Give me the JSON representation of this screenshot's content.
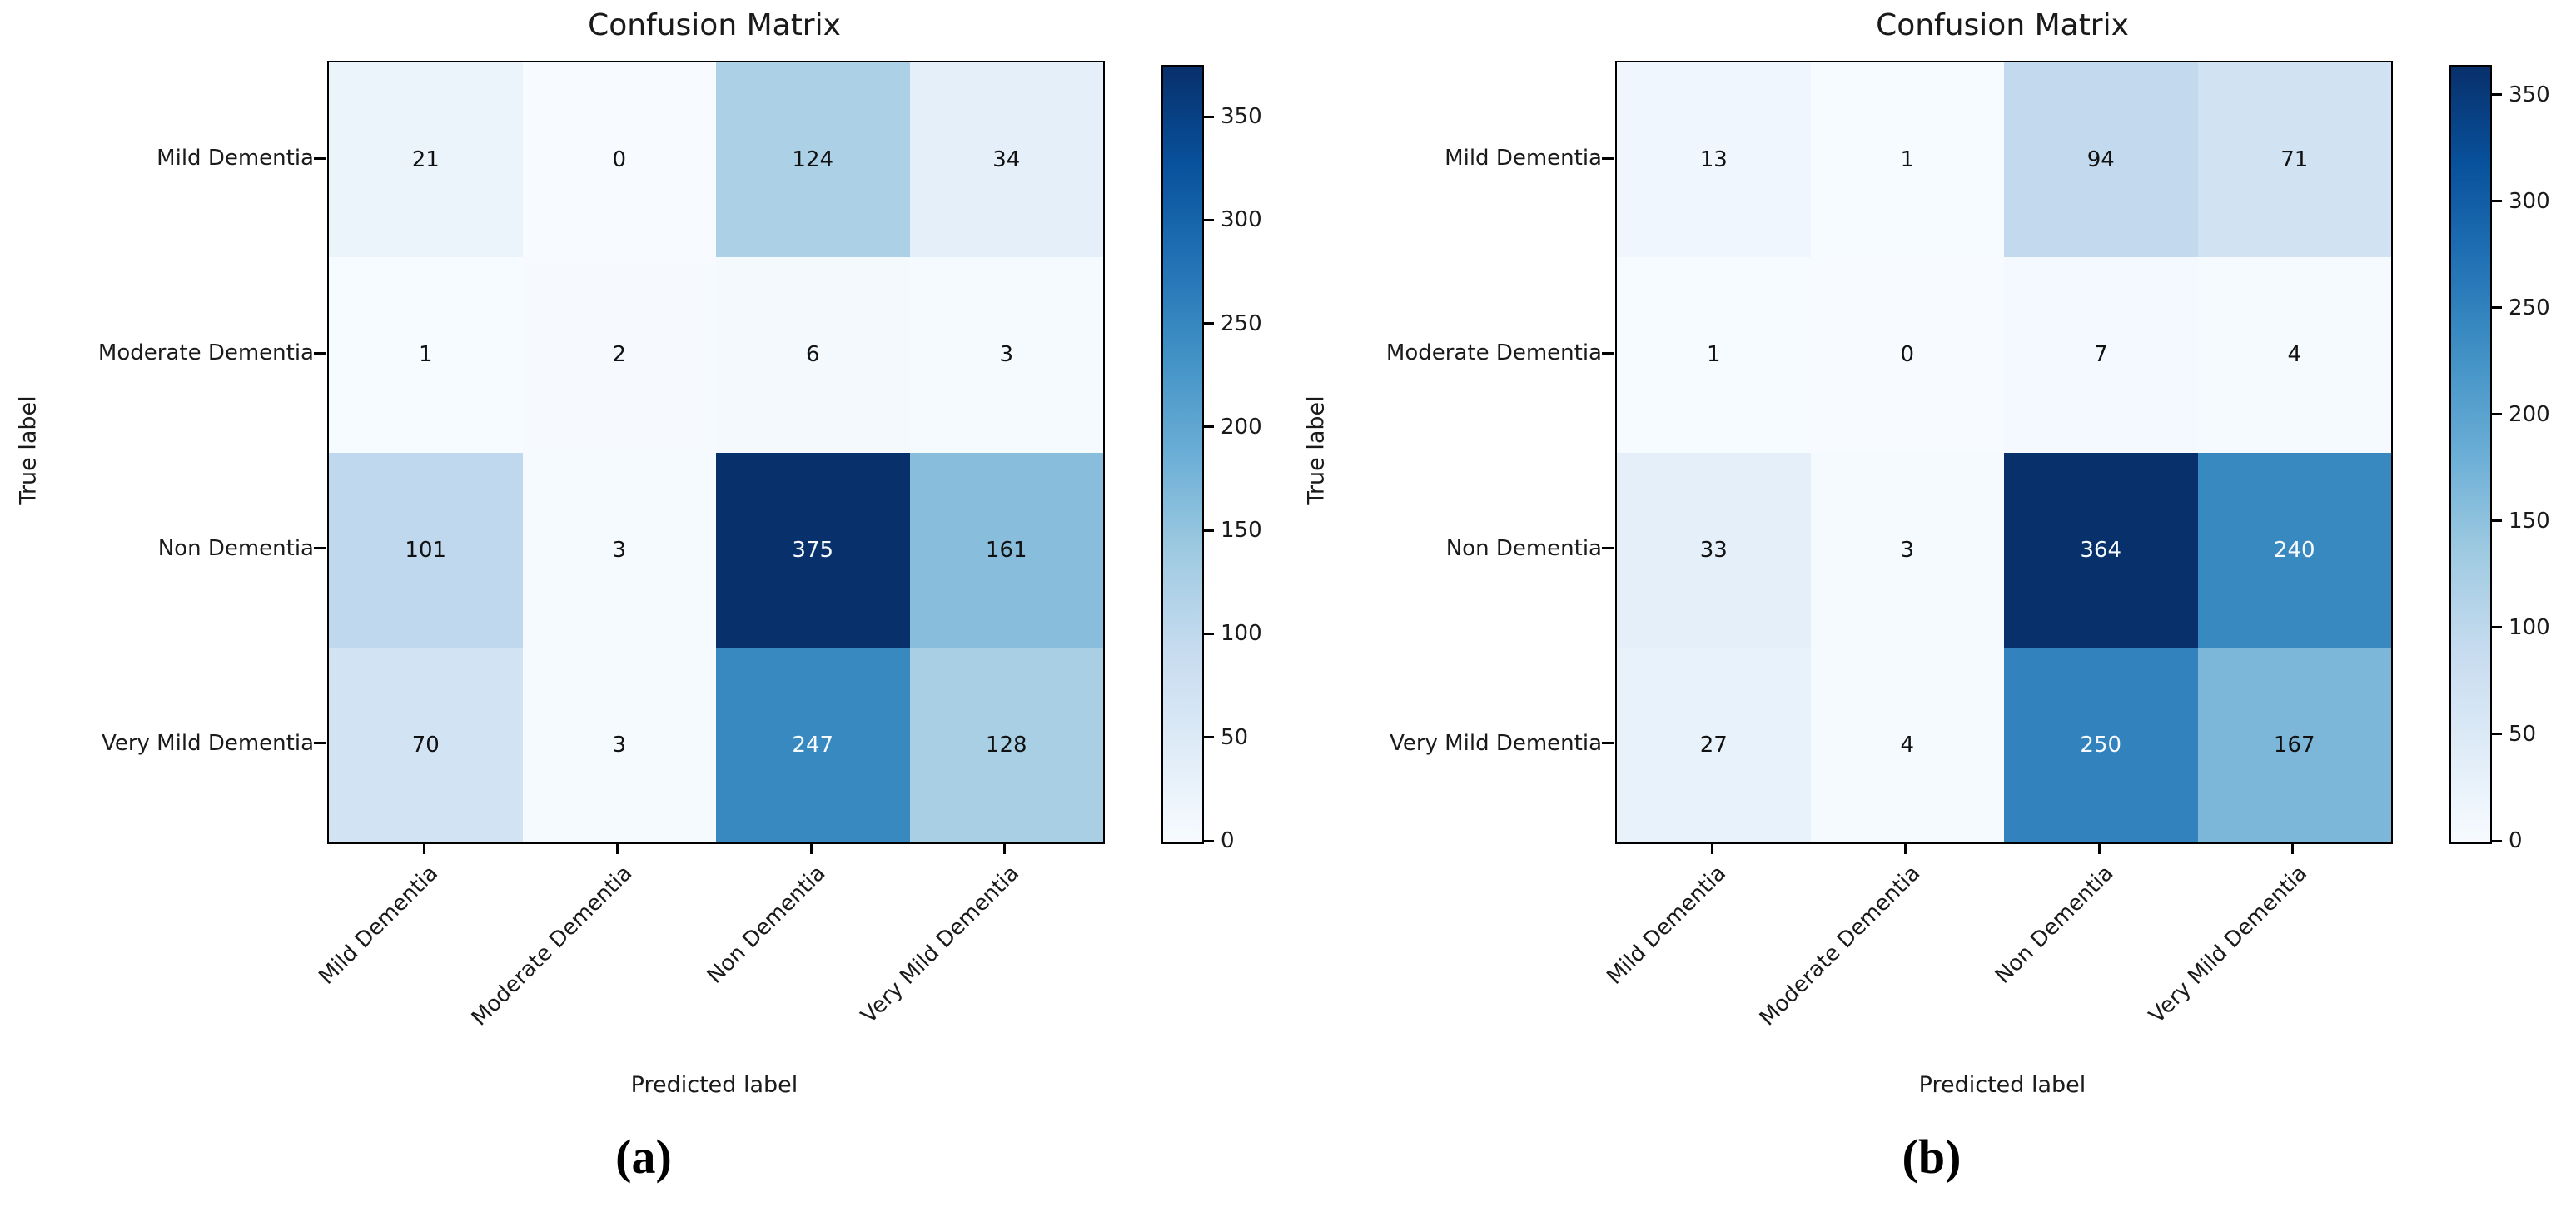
{
  "figure": {
    "background": "#ffffff"
  },
  "colormap_stops": [
    "#f7fbff",
    "#deebf7",
    "#c6dbef",
    "#9ecae1",
    "#6baed6",
    "#4292c6",
    "#2171b5",
    "#08519c",
    "#08306b"
  ],
  "cell_text_colors": {
    "dark": "#111111",
    "light": "#f7fbff"
  },
  "chart_data": [
    {
      "type": "heatmap",
      "caption": "(a)",
      "title": "Confusion Matrix",
      "xlabel": "Predicted label",
      "ylabel": "True label",
      "x_categories": [
        "Mild Dementia",
        "Moderate Dementia",
        "Non Dementia",
        "Very Mild Dementia"
      ],
      "y_categories": [
        "Mild Dementia",
        "Moderate Dementia",
        "Non Dementia",
        "Very Mild Dementia"
      ],
      "values": [
        [
          21,
          0,
          124,
          34
        ],
        [
          1,
          2,
          6,
          3
        ],
        [
          101,
          3,
          375,
          161
        ],
        [
          70,
          3,
          247,
          128
        ]
      ],
      "vmin": 0,
      "vmax": 375,
      "colormap": "Blues",
      "colorbar_position": "right",
      "colorbar_ticks": [
        0,
        50,
        100,
        150,
        200,
        250,
        300,
        350
      ]
    },
    {
      "type": "heatmap",
      "caption": "(b)",
      "title": "Confusion Matrix",
      "xlabel": "Predicted label",
      "ylabel": "True label",
      "x_categories": [
        "Mild Dementia",
        "Moderate Dementia",
        "Non Dementia",
        "Very Mild Dementia"
      ],
      "y_categories": [
        "Mild Dementia",
        "Moderate Dementia",
        "Non Dementia",
        "Very Mild Dementia"
      ],
      "values": [
        [
          13,
          1,
          94,
          71
        ],
        [
          1,
          0,
          7,
          4
        ],
        [
          33,
          3,
          364,
          240
        ],
        [
          27,
          4,
          250,
          167
        ]
      ],
      "vmin": 0,
      "vmax": 364,
      "colormap": "Blues",
      "colorbar_position": "right",
      "colorbar_ticks": [
        0,
        50,
        100,
        150,
        200,
        250,
        300,
        350
      ]
    }
  ]
}
